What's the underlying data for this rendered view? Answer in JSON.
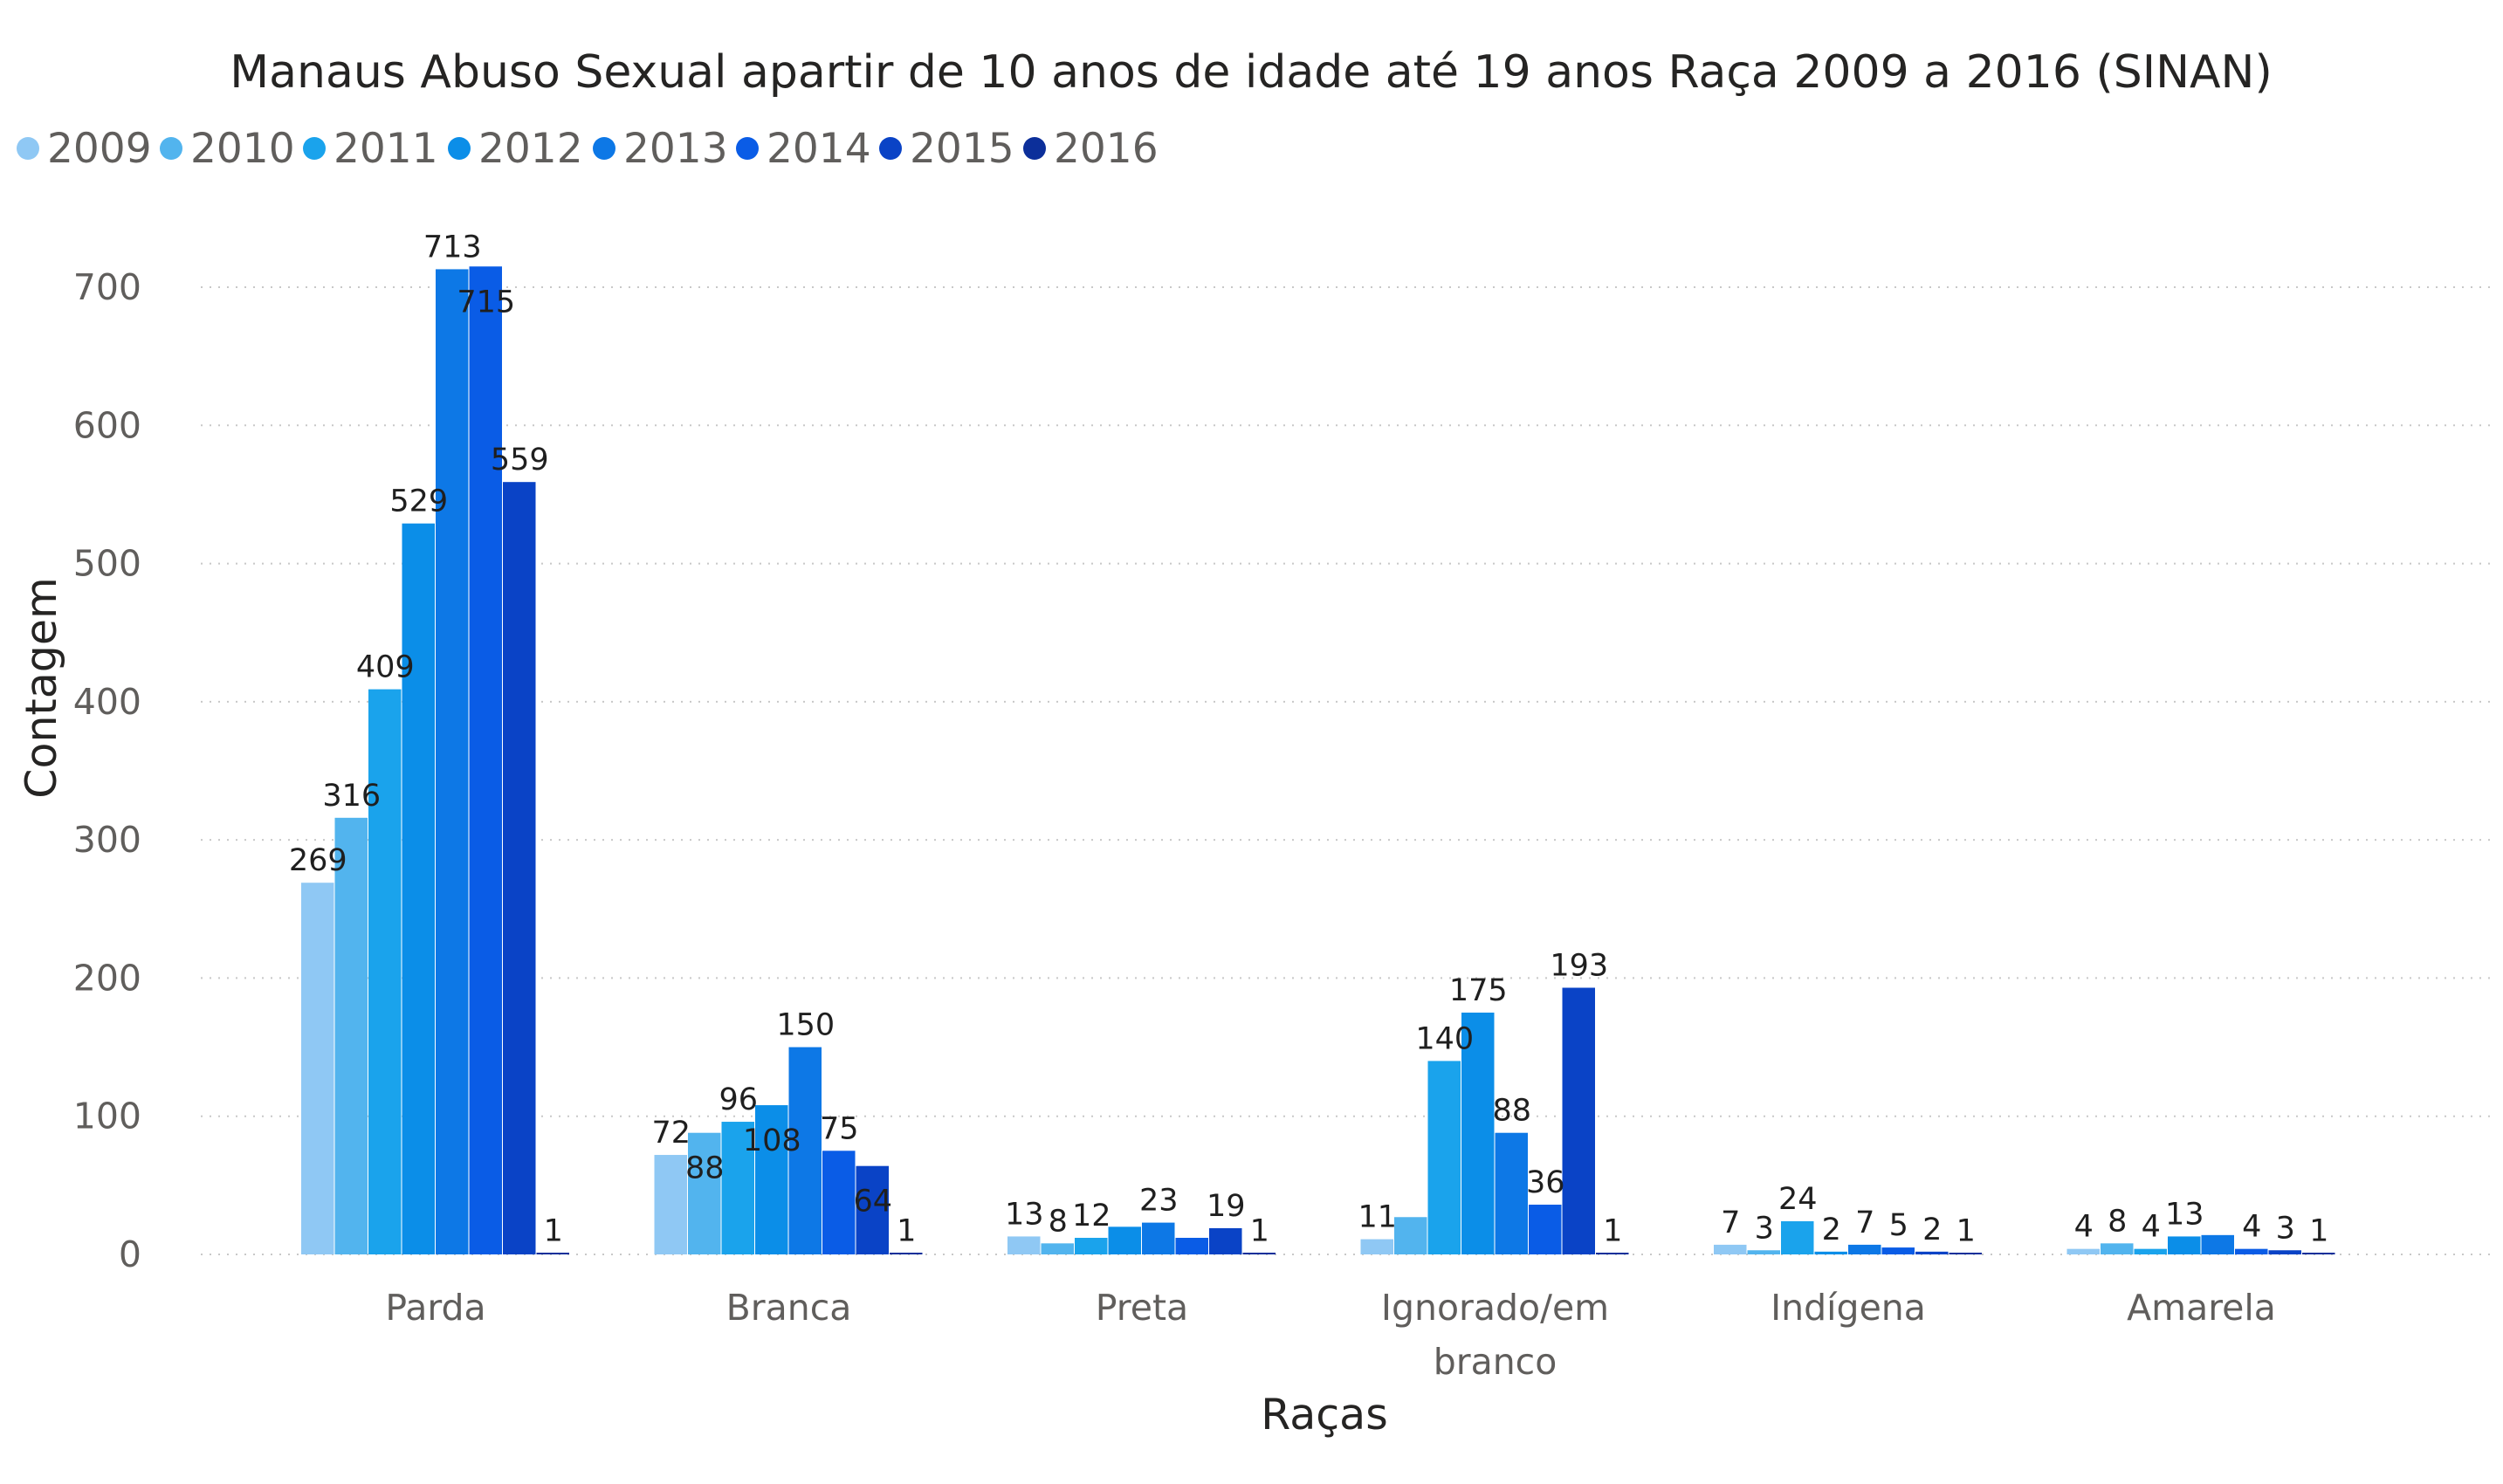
{
  "chart_data": {
    "type": "bar",
    "title": "Manaus Abuso Sexual apartir de 10 anos de idade até 19 anos Raça 2009 a 2016 (SINAN)",
    "xlabel": "Raças",
    "ylabel": "Contagem",
    "ylim": [
      0,
      700
    ],
    "yticks": [
      "0",
      "100",
      "200",
      "300",
      "400",
      "500",
      "600",
      "700"
    ],
    "grid": true,
    "legend_position": "top-left",
    "categories": [
      [
        "Parda"
      ],
      [
        "Branca"
      ],
      [
        "Preta"
      ],
      [
        "Ignorado/em",
        "branco"
      ],
      [
        "Indígena"
      ],
      [
        "Amarela"
      ]
    ],
    "series": [
      {
        "name": "2009",
        "color": "#8fc8f4",
        "values": [
          269,
          72,
          13,
          11,
          7,
          4
        ],
        "labels": [
          "269",
          "72",
          "13",
          "11",
          "7",
          "4"
        ]
      },
      {
        "name": "2010",
        "color": "#52b4ee",
        "values": [
          316,
          88,
          8,
          27,
          3,
          8
        ],
        "labels": [
          "316",
          "88",
          "8",
          "",
          "3",
          "8"
        ]
      },
      {
        "name": "2011",
        "color": "#1aa3ec",
        "values": [
          409,
          96,
          12,
          140,
          24,
          4
        ],
        "labels": [
          "409",
          "96",
          "12",
          "140",
          "24",
          "4"
        ]
      },
      {
        "name": "2012",
        "color": "#0b8ee8",
        "values": [
          529,
          108,
          20,
          175,
          2,
          13
        ],
        "labels": [
          "529",
          "108",
          "",
          "175",
          "2",
          "13"
        ]
      },
      {
        "name": "2013",
        "color": "#0d78e6",
        "values": [
          713,
          150,
          23,
          88,
          7,
          14
        ],
        "labels": [
          "713",
          "150",
          "23",
          "88",
          "7",
          ""
        ]
      },
      {
        "name": "2014",
        "color": "#0a5ce6",
        "values": [
          715,
          75,
          12,
          36,
          5,
          4
        ],
        "labels": [
          "715",
          "75",
          "",
          "36",
          "5",
          "4"
        ]
      },
      {
        "name": "2015",
        "color": "#0a43c6",
        "values": [
          559,
          64,
          19,
          193,
          2,
          3
        ],
        "labels": [
          "559",
          "64",
          "19",
          "193",
          "2",
          "3"
        ]
      },
      {
        "name": "2016",
        "color": "#0c2f9a",
        "values": [
          1,
          1,
          1,
          1,
          1,
          1
        ],
        "labels": [
          "1",
          "1",
          "1",
          "1",
          "1",
          "1"
        ]
      }
    ]
  }
}
